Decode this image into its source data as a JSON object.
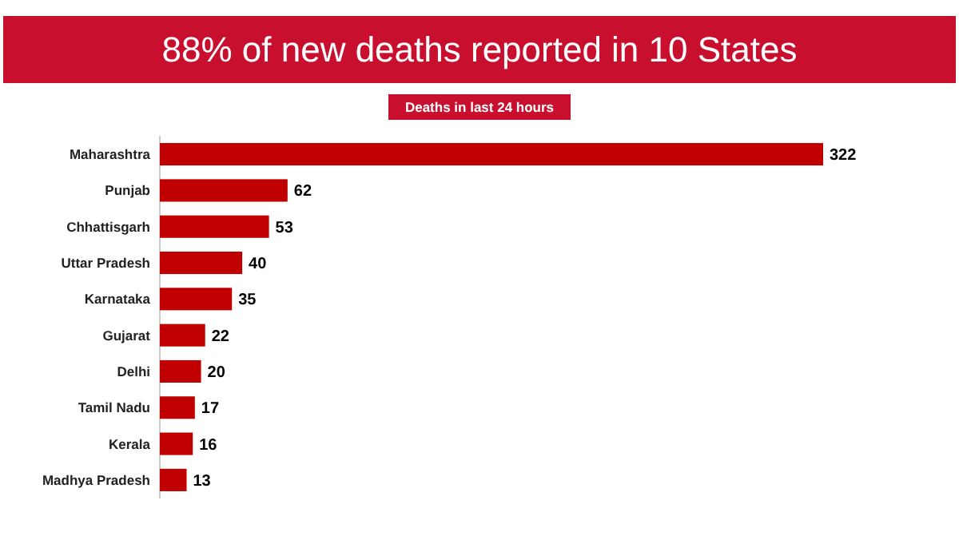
{
  "chart_data": {
    "type": "bar",
    "orientation": "horizontal",
    "title": "88% of new deaths reported in 10 States",
    "subtitle": "Deaths in last 24 hours",
    "categories": [
      "Maharashtra",
      "Punjab",
      "Chhattisgarh",
      "Uttar Pradesh",
      "Karnataka",
      "Gujarat",
      "Delhi",
      "Tamil Nadu",
      "Kerala",
      "Madhya Pradesh"
    ],
    "values": [
      322,
      62,
      53,
      40,
      35,
      22,
      20,
      17,
      16,
      13
    ],
    "color": "#c00000",
    "data_labels": true
  }
}
